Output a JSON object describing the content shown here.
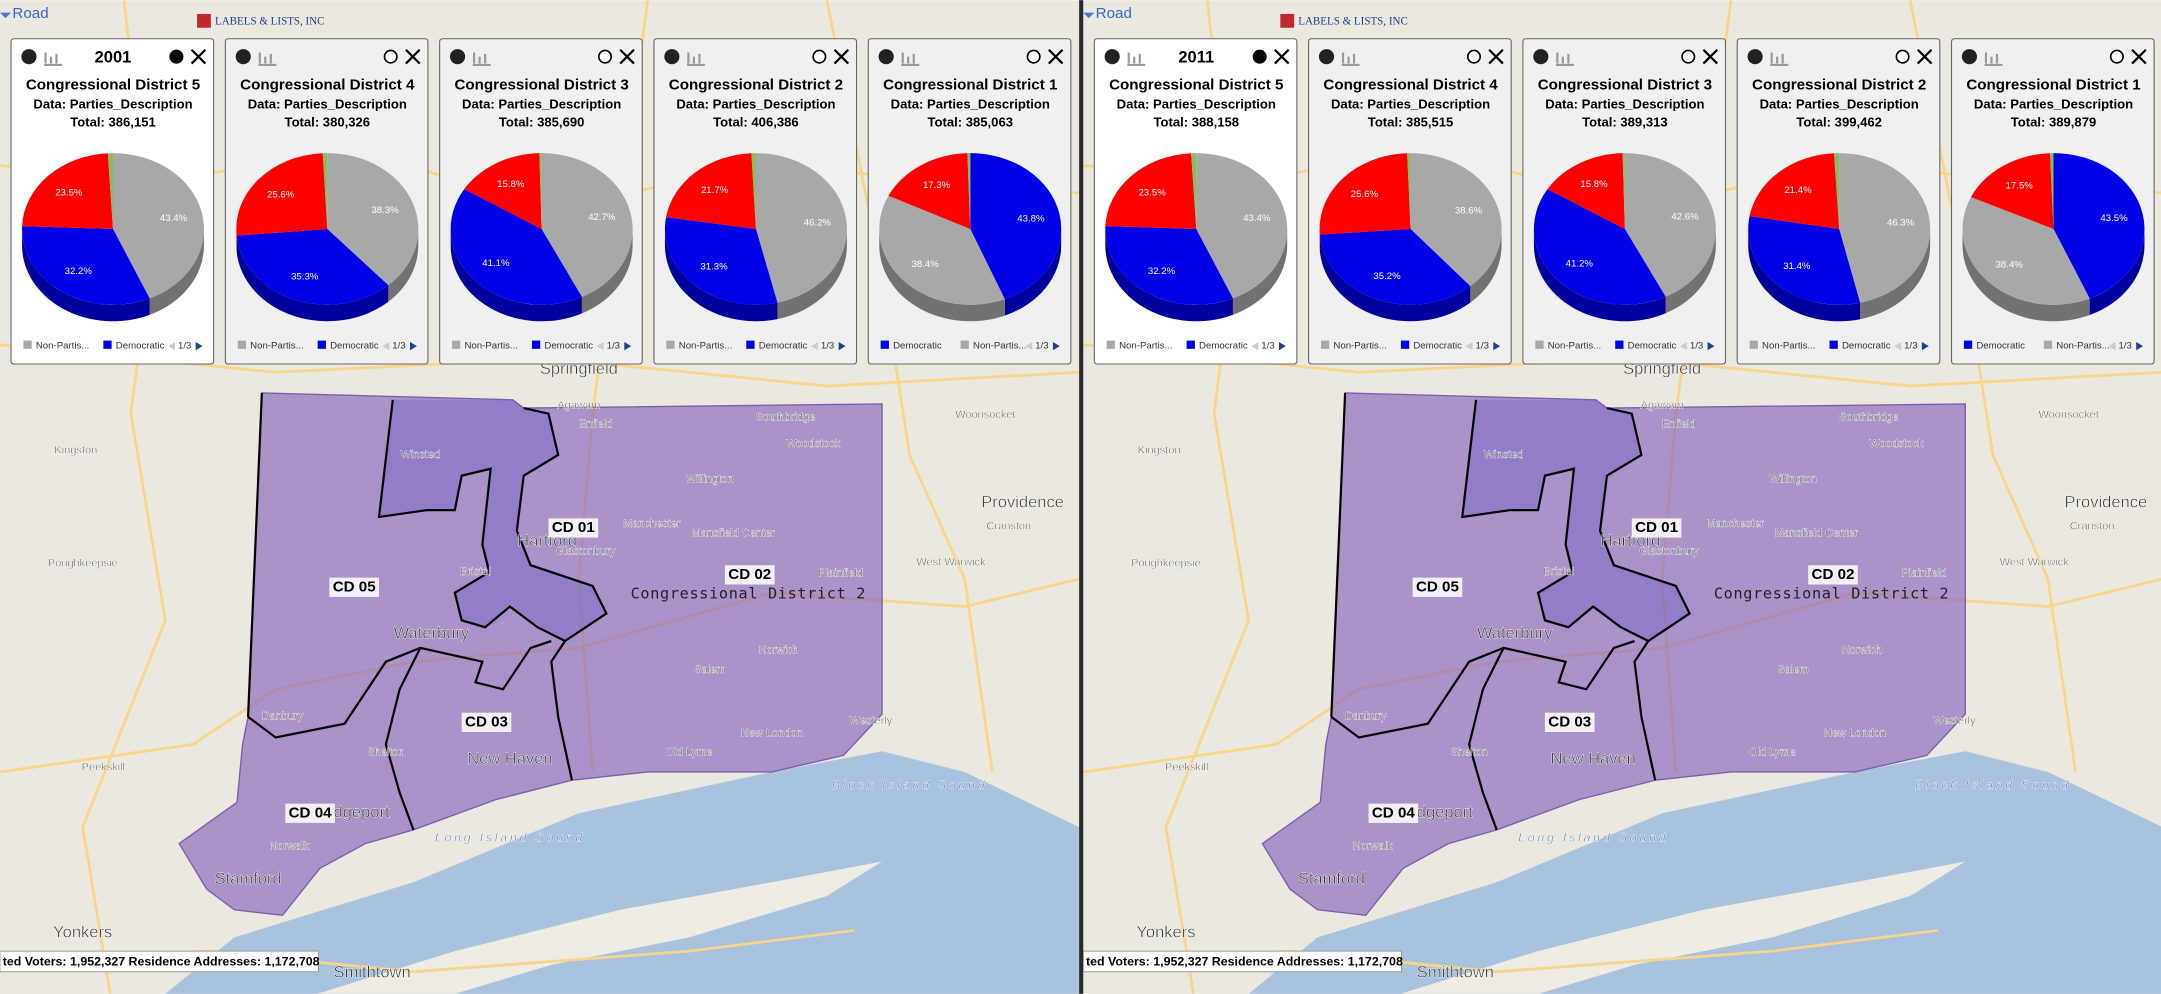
{
  "map_labels": [
    {
      "text": "Springfield",
      "size": "big"
    },
    {
      "text": "Hartford",
      "size": "big"
    },
    {
      "text": "Waterbury",
      "size": "big"
    },
    {
      "text": "New Haven",
      "size": "big"
    },
    {
      "text": "Bridgeport",
      "size": "big"
    },
    {
      "text": "Stamford",
      "size": "big"
    },
    {
      "text": "Providence",
      "size": "big"
    },
    {
      "text": "Yonkers",
      "size": "big"
    },
    {
      "text": "Danbury",
      "size": "small"
    },
    {
      "text": "Enfield",
      "size": "small"
    },
    {
      "text": "Manchester",
      "size": "small"
    },
    {
      "text": "Norwich",
      "size": "small"
    },
    {
      "text": "New London",
      "size": "small"
    },
    {
      "text": "Old Lyme",
      "size": "small"
    },
    {
      "text": "Westerly",
      "size": "small"
    },
    {
      "text": "Long Island Sound",
      "size": "water"
    },
    {
      "text": "Block Island Sound",
      "size": "water"
    },
    {
      "text": "Kingston",
      "size": "small"
    },
    {
      "text": "Poughkeepsie",
      "size": "small"
    },
    {
      "text": "Woonsocket",
      "size": "small"
    },
    {
      "text": "West Warwick",
      "size": "small"
    },
    {
      "text": "Peekskill",
      "size": "small"
    },
    {
      "text": "Smithtown",
      "size": "big"
    },
    {
      "text": "Winsted",
      "size": "small"
    },
    {
      "text": "Southbridge",
      "size": "small"
    },
    {
      "text": "Agawam",
      "size": "small"
    },
    {
      "text": "Norwalk",
      "size": "small"
    },
    {
      "text": "Shelton",
      "size": "small"
    },
    {
      "text": "Bristol",
      "size": "small"
    },
    {
      "text": "Glastonbury",
      "size": "small"
    },
    {
      "text": "Willington",
      "size": "small"
    },
    {
      "text": "Woodstock",
      "size": "small"
    },
    {
      "text": "Plainfield",
      "size": "small"
    },
    {
      "text": "Salem",
      "size": "small"
    },
    {
      "text": "Mansfield Center",
      "size": "small"
    },
    {
      "text": "Cranston",
      "size": "small"
    }
  ],
  "panels": [
    {
      "map_type": "Road",
      "logo": "LABELS & LISTS, INC",
      "year": "2001",
      "district_labels": [
        "CD 01",
        "CD 02",
        "CD 03",
        "CD 04",
        "CD 05"
      ],
      "district_caption": "Congressional District 2",
      "status": "ted Voters: 1,952,327  Residence Addresses: 1,172,708",
      "cards": [
        {
          "title": "Congressional District 5",
          "data_label": "Data: Parties_Description",
          "total": "Total: 386,151",
          "selected": true,
          "slices": [
            {
              "value": 43.4,
              "label": "43.4%",
              "color": "#a8a8a8"
            },
            {
              "value": 32.2,
              "label": "32.2%",
              "color": "#0000e6"
            },
            {
              "value": 23.5,
              "label": "23.5%",
              "color": "#ff0000"
            },
            {
              "value": 0.9,
              "color": "#80c060"
            }
          ],
          "legend": [
            {
              "name": "Non-Partis...",
              "color": "#a8a8a8"
            },
            {
              "name": "Democratic",
              "color": "#0000e6"
            }
          ],
          "pager": "1/3"
        },
        {
          "title": "Congressional District 4",
          "data_label": "Data: Parties_Description",
          "total": "Total: 380,326",
          "selected": false,
          "slices": [
            {
              "value": 38.3,
              "label": "38.3%",
              "color": "#a8a8a8"
            },
            {
              "value": 35.3,
              "label": "35.3%",
              "color": "#0000e6"
            },
            {
              "value": 25.6,
              "label": "25.6%",
              "color": "#ff0000"
            },
            {
              "value": 0.8,
              "color": "#80c060"
            }
          ],
          "legend": [
            {
              "name": "Non-Partis...",
              "color": "#a8a8a8"
            },
            {
              "name": "Democratic",
              "color": "#0000e6"
            }
          ],
          "pager": "1/3"
        },
        {
          "title": "Congressional District 3",
          "data_label": "Data: Parties_Description",
          "total": "Total: 385,690",
          "selected": false,
          "slices": [
            {
              "value": 42.7,
              "label": "42.7%",
              "color": "#a8a8a8"
            },
            {
              "value": 41.1,
              "label": "41.1%",
              "color": "#0000e6"
            },
            {
              "value": 15.8,
              "label": "15.8%",
              "color": "#ff0000"
            },
            {
              "value": 0.4,
              "color": "#80c060"
            }
          ],
          "legend": [
            {
              "name": "Non-Partis...",
              "color": "#a8a8a8"
            },
            {
              "name": "Democratic",
              "color": "#0000e6"
            }
          ],
          "pager": "1/3"
        },
        {
          "title": "Congressional District 2",
          "data_label": "Data: Parties_Description",
          "total": "Total: 406,386",
          "selected": false,
          "slices": [
            {
              "value": 46.2,
              "label": "46.2%",
              "color": "#a8a8a8"
            },
            {
              "value": 31.3,
              "label": "31.3%",
              "color": "#0000e6"
            },
            {
              "value": 21.7,
              "label": "21.7%",
              "color": "#ff0000"
            },
            {
              "value": 0.8,
              "color": "#80c060"
            }
          ],
          "legend": [
            {
              "name": "Non-Partis...",
              "color": "#a8a8a8"
            },
            {
              "name": "Democratic",
              "color": "#0000e6"
            }
          ],
          "pager": "1/3"
        },
        {
          "title": "Congressional District 1",
          "data_label": "Data: Parties_Description",
          "total": "Total: 385,063",
          "selected": false,
          "slices": [
            {
              "value": 43.8,
              "label": "43.8%",
              "color": "#0000e6"
            },
            {
              "value": 38.4,
              "label": "38.4%",
              "color": "#a8a8a8"
            },
            {
              "value": 17.3,
              "label": "17.3%",
              "color": "#ff0000"
            },
            {
              "value": 0.5,
              "color": "#80c060"
            }
          ],
          "legend": [
            {
              "name": "Democratic",
              "color": "#0000e6"
            },
            {
              "name": "Non-Partis...",
              "color": "#a8a8a8"
            }
          ],
          "pager": "1/3"
        }
      ]
    },
    {
      "map_type": "Road",
      "logo": "LABELS & LISTS, INC",
      "year": "2011",
      "district_labels": [
        "CD 01",
        "CD 02",
        "CD 03",
        "CD 04",
        "CD 05"
      ],
      "district_caption": "Congressional District 2",
      "status": "ted Voters: 1,952,327  Residence Addresses: 1,172,708",
      "cards": [
        {
          "title": "Congressional District 5",
          "data_label": "Data: Parties_Description",
          "total": "Total: 388,158",
          "selected": true,
          "slices": [
            {
              "value": 43.4,
              "label": "43.4%",
              "color": "#a8a8a8"
            },
            {
              "value": 32.2,
              "label": "32.2%",
              "color": "#0000e6"
            },
            {
              "value": 23.5,
              "label": "23.5%",
              "color": "#ff0000"
            },
            {
              "value": 0.9,
              "color": "#80c060"
            }
          ],
          "legend": [
            {
              "name": "Non-Partis...",
              "color": "#a8a8a8"
            },
            {
              "name": "Democratic",
              "color": "#0000e6"
            }
          ],
          "pager": "1/3"
        },
        {
          "title": "Congressional District 4",
          "data_label": "Data: Parties_Description",
          "total": "Total: 385,515",
          "selected": false,
          "slices": [
            {
              "value": 38.6,
              "label": "38.6%",
              "color": "#a8a8a8"
            },
            {
              "value": 35.2,
              "label": "35.2%",
              "color": "#0000e6"
            },
            {
              "value": 25.6,
              "label": "25.6%",
              "color": "#ff0000"
            },
            {
              "value": 0.6,
              "color": "#80c060"
            }
          ],
          "legend": [
            {
              "name": "Non-Partis...",
              "color": "#a8a8a8"
            },
            {
              "name": "Democratic",
              "color": "#0000e6"
            }
          ],
          "pager": "1/3"
        },
        {
          "title": "Congressional District 3",
          "data_label": "Data: Parties_Description",
          "total": "Total: 389,313",
          "selected": false,
          "slices": [
            {
              "value": 42.6,
              "label": "42.6%",
              "color": "#a8a8a8"
            },
            {
              "value": 41.2,
              "label": "41.2%",
              "color": "#0000e6"
            },
            {
              "value": 15.8,
              "label": "15.8%",
              "color": "#ff0000"
            },
            {
              "value": 0.4,
              "color": "#80c060"
            }
          ],
          "legend": [
            {
              "name": "Non-Partis...",
              "color": "#a8a8a8"
            },
            {
              "name": "Democratic",
              "color": "#0000e6"
            }
          ],
          "pager": "1/3"
        },
        {
          "title": "Congressional District 2",
          "data_label": "Data: Parties_Description",
          "total": "Total: 399,462",
          "selected": false,
          "slices": [
            {
              "value": 46.3,
              "label": "46.3%",
              "color": "#a8a8a8"
            },
            {
              "value": 31.4,
              "label": "31.4%",
              "color": "#0000e6"
            },
            {
              "value": 21.4,
              "label": "21.4%",
              "color": "#ff0000"
            },
            {
              "value": 0.9,
              "color": "#80c060"
            }
          ],
          "legend": [
            {
              "name": "Non-Partis...",
              "color": "#a8a8a8"
            },
            {
              "name": "Democratic",
              "color": "#0000e6"
            }
          ],
          "pager": "1/3"
        },
        {
          "title": "Congressional District 1",
          "data_label": "Data: Parties_Description",
          "total": "Total: 389,879",
          "selected": false,
          "slices": [
            {
              "value": 43.5,
              "label": "43.5%",
              "color": "#0000e6"
            },
            {
              "value": 38.4,
              "label": "38.4%",
              "color": "#a8a8a8"
            },
            {
              "value": 17.5,
              "label": "17.5%",
              "color": "#ff0000"
            },
            {
              "value": 0.6,
              "color": "#80c060"
            }
          ],
          "legend": [
            {
              "name": "Democratic",
              "color": "#0000e6"
            },
            {
              "name": "Non-Partis...",
              "color": "#a8a8a8"
            }
          ],
          "pager": "1/3"
        }
      ]
    }
  ]
}
